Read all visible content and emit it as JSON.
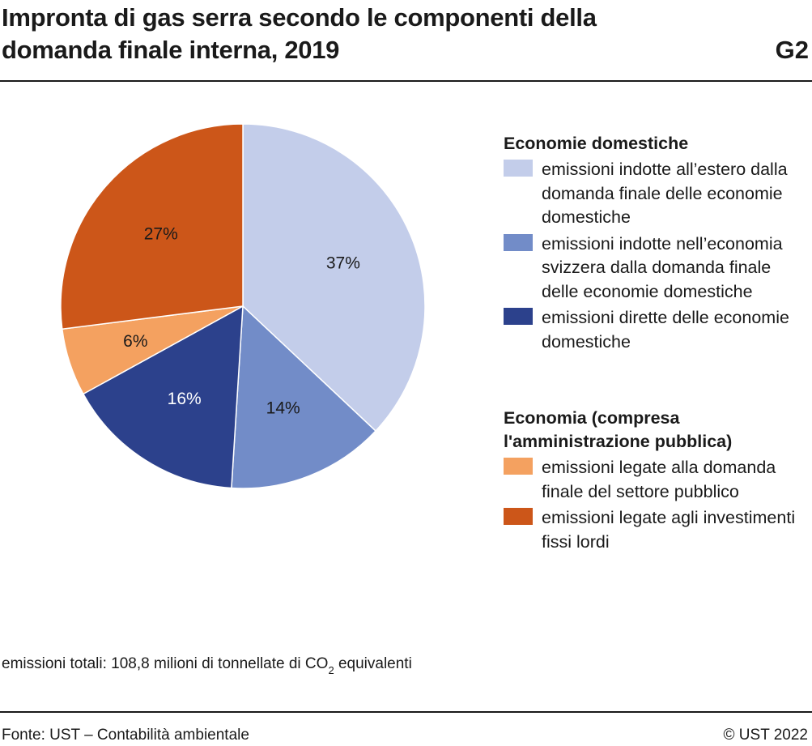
{
  "title_line1": "Impronta di gas serra secondo le componenti della",
  "title_line2": "domanda finale interna, 2019",
  "figure_number": "G2",
  "chart_data": {
    "type": "pie",
    "slices": [
      {
        "label": "emissioni indotte all’estero dalla domanda finale delle economie domestiche",
        "value": 37,
        "value_label": "37%",
        "color": "#c3cdea",
        "label_color": "#1a1a1a"
      },
      {
        "label": "emissioni indotte nell’economia svizzera dalla domanda finale delle economie domestiche",
        "value": 14,
        "value_label": "14%",
        "color": "#728cc8",
        "label_color": "#1a1a1a"
      },
      {
        "label": "emissioni dirette delle economie domestiche",
        "value": 16,
        "value_label": "16%",
        "color": "#2c418c",
        "label_color": "#ffffff"
      },
      {
        "label": "emissioni legate alla domanda finale del settore pubblico",
        "value": 6,
        "value_label": "6%",
        "color": "#f4a160",
        "label_color": "#1a1a1a"
      },
      {
        "label": "emissioni legate agli investimenti fissi lordi",
        "value": 27,
        "value_label": "27%",
        "color": "#cc5619",
        "label_color": "#1a1a1a"
      }
    ],
    "legend_groups": [
      {
        "title": "Economie domestiche",
        "items": [
          0,
          1,
          2
        ]
      },
      {
        "title": "Economia (compresa l'amministrazione pubblica)",
        "items": [
          3,
          4
        ]
      }
    ],
    "start": "12 o'clock",
    "direction": "clockwise",
    "legend_position": "right"
  },
  "legend": {
    "group1_title": "Economie domestiche",
    "group1_items": [
      {
        "text": "emissioni indotte all’estero dalla domanda finale delle economie domestiche",
        "color": "#c3cdea"
      },
      {
        "text": "emissioni indotte nell’economia svizzera dalla domanda finale delle economie domestiche",
        "color": "#728cc8"
      },
      {
        "text": "emissioni dirette delle economie domestiche",
        "color": "#2c418c"
      }
    ],
    "group2_title": "Economia (compresa l'amministrazione pubblica)",
    "group2_items": [
      {
        "text": "emissioni legate alla domanda finale del settore pubblico",
        "color": "#f4a160"
      },
      {
        "text": "emissioni legate agli investimenti fissi lordi",
        "color": "#cc5619"
      }
    ]
  },
  "note": {
    "prefix": "emissioni totali: 108,8 milioni di tonnellate di CO",
    "subscript": "2",
    "suffix": " equivalenti"
  },
  "source": "Fonte: UST – Contabilità ambientale",
  "copyright": "© UST 2022"
}
